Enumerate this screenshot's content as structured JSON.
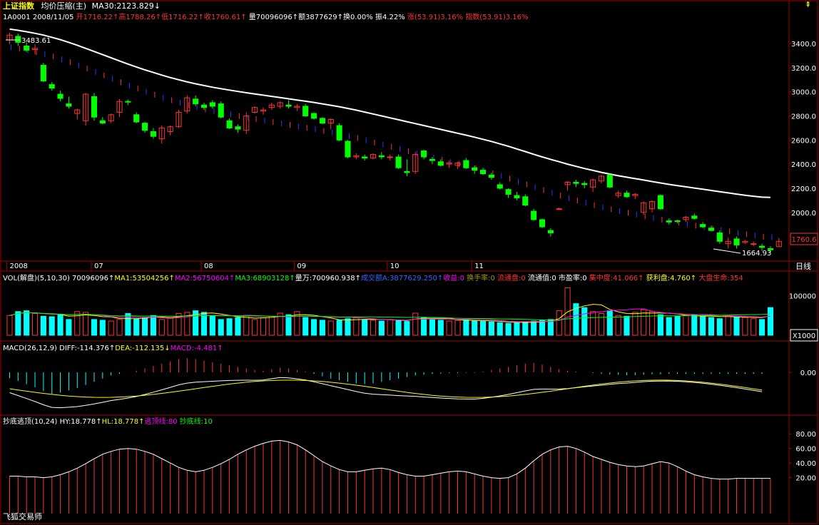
{
  "colors": {
    "up": "#ff3333",
    "down": "#00ff00",
    "ma30": "#ffffff",
    "vol_bar": "#00ffff",
    "grid": "#a00000",
    "axis_text": "#ffffff",
    "price_tag_border": "#ff3333"
  },
  "header": {
    "index_name": "上证指数",
    "mode_label": "均价压缩(主)",
    "ma30_label": "MA30:2123.829↓",
    "row2": {
      "code_date": "1A0001 2008/11/05",
      "open": "开1716.22↑",
      "high": "高1788.26↑",
      "low": "低1716.22↑",
      "close": "收1760.61↑",
      "volume": "量70096096↑",
      "amount": "额3877629↑",
      "turnover": "换0.00%",
      "amplitude": "振4.22%",
      "change": "涨(53.91)3.16%",
      "index_change": "指数(53.91)3.16%"
    }
  },
  "vol_header": {
    "title": "VOL(解盘)(5,10,30) 70096096↑",
    "ma1": "MA1:53504256↑",
    "ma2": "MA2:56750604↑",
    "ma3": "MA3:68903128↑",
    "liang": "量万:700960.938↑",
    "amount": "成交额A:3877629.250↑",
    "gain": "收益:0",
    "turn": "换手率:0",
    "float_disk": "流通盘:0",
    "float_val": "流通值:0",
    "pe": "市盈率:0",
    "concentration": "集中度:41.066↑",
    "profit": "获利盘:4.760↑",
    "life": "大盘生命:354"
  },
  "macd_header": {
    "title": "MACD(26,12,9)",
    "diff": "DIFF:-114.376↑",
    "dea": "DEA:-112.135↓",
    "macd": "MACD:-4.481↑"
  },
  "osc_header": {
    "title": "抄底逃顶(10,24)",
    "hy": "HY:18.778↑",
    "hl": "HL:18.778↑",
    "escape": "逃顶线:80",
    "bottom": "抄底线:10"
  },
  "axis": {
    "price_ticks": [
      "3400.0",
      "3200.0",
      "3000.0",
      "2800.0",
      "2600.0",
      "2400.0",
      "2200.0",
      "2000.0"
    ],
    "price_values": [
      3400,
      3200,
      3000,
      2800,
      2600,
      2400,
      2200,
      2000
    ],
    "vol_tick": "100000",
    "vol_unit": "X1000",
    "macd_tick": "0.00",
    "osc_ticks": [
      "80.00",
      "60.00",
      "40.00",
      "20.00"
    ],
    "osc_values": [
      80,
      60,
      40,
      20
    ],
    "time_labels": [
      "2008",
      "07",
      "08",
      "09",
      "10",
      "11"
    ],
    "time_index": [
      0,
      10,
      23,
      34,
      45,
      55
    ],
    "period": "日线"
  },
  "annotations": {
    "high": "3483.61",
    "low": "1664.93",
    "last_price": "1760.6"
  },
  "watermark": "飞狐交易师",
  "toolbar": {
    "top_arrow": "⇞",
    "bottom_arrow": "⇟"
  },
  "chart_data": {
    "type": "candlestick",
    "title": "上证指数",
    "period": "weekly",
    "ylim": [
      1620,
      3560
    ],
    "candles": [
      {
        "o": 3430,
        "h": 3490,
        "l": 3395,
        "c": 3470
      },
      {
        "o": 3460,
        "h": 3483,
        "l": 3380,
        "c": 3410
      },
      {
        "o": 3380,
        "h": 3410,
        "l": 3330,
        "c": 3345
      },
      {
        "o": 3350,
        "h": 3395,
        "l": 3310,
        "c": 3360
      },
      {
        "o": 3220,
        "h": 3240,
        "l": 3080,
        "c": 3090
      },
      {
        "o": 3060,
        "h": 3080,
        "l": 3010,
        "c": 3030
      },
      {
        "o": 2980,
        "h": 3010,
        "l": 2920,
        "c": 2945
      },
      {
        "o": 2900,
        "h": 2960,
        "l": 2860,
        "c": 2880
      },
      {
        "o": 2820,
        "h": 2860,
        "l": 2770,
        "c": 2850
      },
      {
        "o": 2760,
        "h": 2990,
        "l": 2720,
        "c": 2980
      },
      {
        "o": 2960,
        "h": 2990,
        "l": 2760,
        "c": 2790
      },
      {
        "o": 2760,
        "h": 2790,
        "l": 2730,
        "c": 2740
      },
      {
        "o": 2760,
        "h": 2820,
        "l": 2740,
        "c": 2810
      },
      {
        "o": 2830,
        "h": 2940,
        "l": 2790,
        "c": 2920
      },
      {
        "o": 2920,
        "h": 2935,
        "l": 2890,
        "c": 2915
      },
      {
        "o": 2810,
        "h": 2830,
        "l": 2740,
        "c": 2750
      },
      {
        "o": 2740,
        "h": 2750,
        "l": 2660,
        "c": 2680
      },
      {
        "o": 2670,
        "h": 2700,
        "l": 2610,
        "c": 2630
      },
      {
        "o": 2610,
        "h": 2720,
        "l": 2570,
        "c": 2700
      },
      {
        "o": 2670,
        "h": 2720,
        "l": 2640,
        "c": 2710
      },
      {
        "o": 2710,
        "h": 2850,
        "l": 2700,
        "c": 2830
      },
      {
        "o": 2840,
        "h": 2970,
        "l": 2820,
        "c": 2950
      },
      {
        "o": 2940,
        "h": 2970,
        "l": 2880,
        "c": 2900
      },
      {
        "o": 2890,
        "h": 2910,
        "l": 2850,
        "c": 2870
      },
      {
        "o": 2910,
        "h": 2930,
        "l": 2860,
        "c": 2880
      },
      {
        "o": 2900,
        "h": 2920,
        "l": 2780,
        "c": 2790
      },
      {
        "o": 2760,
        "h": 2780,
        "l": 2690,
        "c": 2700
      },
      {
        "o": 2710,
        "h": 2730,
        "l": 2660,
        "c": 2690
      },
      {
        "o": 2680,
        "h": 2830,
        "l": 2650,
        "c": 2800
      },
      {
        "o": 2830,
        "h": 2880,
        "l": 2820,
        "c": 2870
      },
      {
        "o": 2840,
        "h": 2870,
        "l": 2810,
        "c": 2850
      },
      {
        "o": 2870,
        "h": 2910,
        "l": 2850,
        "c": 2890
      },
      {
        "o": 2880,
        "h": 2920,
        "l": 2860,
        "c": 2910
      },
      {
        "o": 2890,
        "h": 2930,
        "l": 2860,
        "c": 2880
      },
      {
        "o": 2870,
        "h": 2900,
        "l": 2840,
        "c": 2880
      },
      {
        "o": 2880,
        "h": 2900,
        "l": 2790,
        "c": 2800
      },
      {
        "o": 2820,
        "h": 2830,
        "l": 2770,
        "c": 2780
      },
      {
        "o": 2780,
        "h": 2790,
        "l": 2730,
        "c": 2740
      },
      {
        "o": 2740,
        "h": 2780,
        "l": 2690,
        "c": 2770
      },
      {
        "o": 2720,
        "h": 2740,
        "l": 2590,
        "c": 2600
      },
      {
        "o": 2590,
        "h": 2600,
        "l": 2450,
        "c": 2460
      },
      {
        "o": 2460,
        "h": 2490,
        "l": 2440,
        "c": 2470
      },
      {
        "o": 2460,
        "h": 2480,
        "l": 2430,
        "c": 2450
      },
      {
        "o": 2450,
        "h": 2490,
        "l": 2440,
        "c": 2480
      },
      {
        "o": 2470,
        "h": 2500,
        "l": 2440,
        "c": 2460
      },
      {
        "o": 2460,
        "h": 2480,
        "l": 2430,
        "c": 2460
      },
      {
        "o": 2460,
        "h": 2480,
        "l": 2360,
        "c": 2370
      },
      {
        "o": 2340,
        "h": 2440,
        "l": 2300,
        "c": 2330
      },
      {
        "o": 2340,
        "h": 2500,
        "l": 2320,
        "c": 2480
      },
      {
        "o": 2510,
        "h": 2520,
        "l": 2440,
        "c": 2460
      },
      {
        "o": 2440,
        "h": 2460,
        "l": 2400,
        "c": 2430
      },
      {
        "o": 2420,
        "h": 2440,
        "l": 2380,
        "c": 2390
      },
      {
        "o": 2400,
        "h": 2430,
        "l": 2370,
        "c": 2410
      },
      {
        "o": 2390,
        "h": 2420,
        "l": 2360,
        "c": 2410
      },
      {
        "o": 2430,
        "h": 2450,
        "l": 2360,
        "c": 2370
      },
      {
        "o": 2370,
        "h": 2390,
        "l": 2320,
        "c": 2350
      },
      {
        "o": 2350,
        "h": 2370,
        "l": 2310,
        "c": 2320
      },
      {
        "o": 2310,
        "h": 2330,
        "l": 2270,
        "c": 2290
      },
      {
        "o": 2230,
        "h": 2250,
        "l": 2190,
        "c": 2200
      },
      {
        "o": 2190,
        "h": 2200,
        "l": 2120,
        "c": 2150
      },
      {
        "o": 2140,
        "h": 2170,
        "l": 2100,
        "c": 2120
      },
      {
        "o": 2130,
        "h": 2150,
        "l": 2050,
        "c": 2060
      },
      {
        "o": 2010,
        "h": 2030,
        "l": 1930,
        "c": 1940
      },
      {
        "o": 1940,
        "h": 1950,
        "l": 1870,
        "c": 1880
      },
      {
        "o": 1850,
        "h": 1870,
        "l": 1800,
        "c": 1830
      },
      {
        "o": 2030,
        "h": 2040,
        "l": 2020,
        "c": 2030
      },
      {
        "o": 2230,
        "h": 2260,
        "l": 2180,
        "c": 2250
      },
      {
        "o": 2250,
        "h": 2270,
        "l": 2210,
        "c": 2240
      },
      {
        "o": 2240,
        "h": 2260,
        "l": 2200,
        "c": 2230
      },
      {
        "o": 2210,
        "h": 2280,
        "l": 2170,
        "c": 2270
      },
      {
        "o": 2260,
        "h": 2310,
        "l": 2240,
        "c": 2300
      },
      {
        "o": 2310,
        "h": 2320,
        "l": 2200,
        "c": 2210
      },
      {
        "o": 2140,
        "h": 2180,
        "l": 2120,
        "c": 2160
      },
      {
        "o": 2160,
        "h": 2180,
        "l": 2120,
        "c": 2130
      },
      {
        "o": 2140,
        "h": 2160,
        "l": 2110,
        "c": 2150
      },
      {
        "o": 2000,
        "h": 2090,
        "l": 1980,
        "c": 2080
      },
      {
        "o": 2030,
        "h": 2100,
        "l": 2000,
        "c": 2090
      },
      {
        "o": 2140,
        "h": 2150,
        "l": 2020,
        "c": 2030
      },
      {
        "o": 1930,
        "h": 1950,
        "l": 1900,
        "c": 1920
      },
      {
        "o": 1930,
        "h": 1940,
        "l": 1910,
        "c": 1925
      },
      {
        "o": 1940,
        "h": 1970,
        "l": 1920,
        "c": 1960
      },
      {
        "o": 1970,
        "h": 1990,
        "l": 1940,
        "c": 1950
      },
      {
        "o": 1900,
        "h": 1920,
        "l": 1870,
        "c": 1880
      },
      {
        "o": 1870,
        "h": 1890,
        "l": 1840,
        "c": 1850
      },
      {
        "o": 1830,
        "h": 1850,
        "l": 1740,
        "c": 1760
      },
      {
        "o": 1740,
        "h": 1790,
        "l": 1700,
        "c": 1760
      },
      {
        "o": 1780,
        "h": 1800,
        "l": 1700,
        "c": 1730
      },
      {
        "o": 1750,
        "h": 1770,
        "l": 1740,
        "c": 1760
      },
      {
        "o": 1740,
        "h": 1760,
        "l": 1720,
        "c": 1740
      },
      {
        "o": 1720,
        "h": 1740,
        "l": 1680,
        "c": 1710
      },
      {
        "o": 1700,
        "h": 1720,
        "l": 1665,
        "c": 1690
      },
      {
        "o": 1716,
        "h": 1788,
        "l": 1716,
        "c": 1760
      }
    ],
    "ma30": [
      3520,
      3510,
      3498,
      3485,
      3470,
      3452,
      3432,
      3410,
      3386,
      3360,
      3334,
      3308,
      3282,
      3256,
      3230,
      3206,
      3182,
      3160,
      3138,
      3118,
      3100,
      3082,
      3066,
      3052,
      3038,
      3026,
      3014,
      3003,
      2992,
      2982,
      2972,
      2962,
      2952,
      2942,
      2932,
      2922,
      2912,
      2900,
      2888,
      2876,
      2862,
      2848,
      2832,
      2816,
      2800,
      2784,
      2768,
      2752,
      2736,
      2720,
      2704,
      2688,
      2672,
      2656,
      2640,
      2624,
      2606,
      2588,
      2568,
      2548,
      2526,
      2504,
      2482,
      2460,
      2440,
      2420,
      2400,
      2382,
      2364,
      2348,
      2332,
      2318,
      2304,
      2292,
      2280,
      2268,
      2256,
      2244,
      2232,
      2222,
      2212,
      2202,
      2192,
      2182,
      2172,
      2162,
      2152,
      2142,
      2134,
      2126,
      2124
    ],
    "volume": [
      50,
      60,
      62,
      55,
      48,
      47,
      52,
      40,
      60,
      58,
      40,
      38,
      36,
      40,
      55,
      42,
      44,
      50,
      40,
      45,
      55,
      58,
      62,
      58,
      50,
      40,
      42,
      45,
      50,
      40,
      44,
      48,
      56,
      52,
      60,
      45,
      40,
      38,
      36,
      38,
      42,
      44,
      40,
      38,
      36,
      40,
      38,
      35,
      56,
      45,
      40,
      38,
      36,
      38,
      40,
      36,
      35,
      34,
      32,
      30,
      32,
      34,
      36,
      38,
      40,
      62,
      120,
      80,
      70,
      60,
      55,
      62,
      50,
      48,
      58,
      65,
      60,
      52,
      45,
      48,
      50,
      52,
      48,
      45,
      42,
      50,
      48,
      45,
      42,
      40,
      70
    ],
    "macd_hist": [
      -15,
      -22,
      -30,
      -38,
      -48,
      -55,
      -52,
      -46,
      -40,
      -32,
      -24,
      -16,
      -8,
      -4,
      0,
      4,
      10,
      16,
      22,
      28,
      34,
      36,
      34,
      30,
      26,
      22,
      18,
      14,
      10,
      6,
      4,
      8,
      12,
      10,
      6,
      2,
      -4,
      -10,
      -16,
      -20,
      -24,
      -28,
      -30,
      -28,
      -24,
      -20,
      -16,
      -12,
      -8,
      -6,
      -4,
      -3,
      -2,
      -2,
      -1,
      -1,
      2,
      6,
      10,
      14,
      18,
      22,
      24,
      20,
      14,
      8,
      4,
      2,
      0,
      -2,
      -4,
      -5,
      -6,
      -7,
      -7,
      -6,
      -5,
      -5,
      -4,
      -4,
      -4,
      -4,
      -4,
      -4,
      -4,
      -4,
      -4,
      -4,
      -4,
      -4
    ],
    "osc": [
      22,
      22,
      21,
      21,
      20,
      21,
      24,
      28,
      33,
      39,
      46,
      52,
      56,
      59,
      60,
      59,
      56,
      52,
      46,
      40,
      34,
      30,
      28,
      30,
      34,
      39,
      45,
      52,
      58,
      63,
      67,
      70,
      71,
      69,
      65,
      58,
      50,
      42,
      36,
      31,
      28,
      28,
      30,
      32,
      33,
      31,
      27,
      24,
      22,
      22,
      24,
      26,
      28,
      29,
      28,
      25,
      22,
      20,
      19,
      20,
      25,
      33,
      43,
      52,
      58,
      62,
      63,
      60,
      55,
      49,
      45,
      41,
      38,
      36,
      35,
      36,
      39,
      42,
      40,
      35,
      29,
      24,
      21,
      19,
      18,
      18,
      19,
      19,
      19,
      19,
      19
    ]
  }
}
